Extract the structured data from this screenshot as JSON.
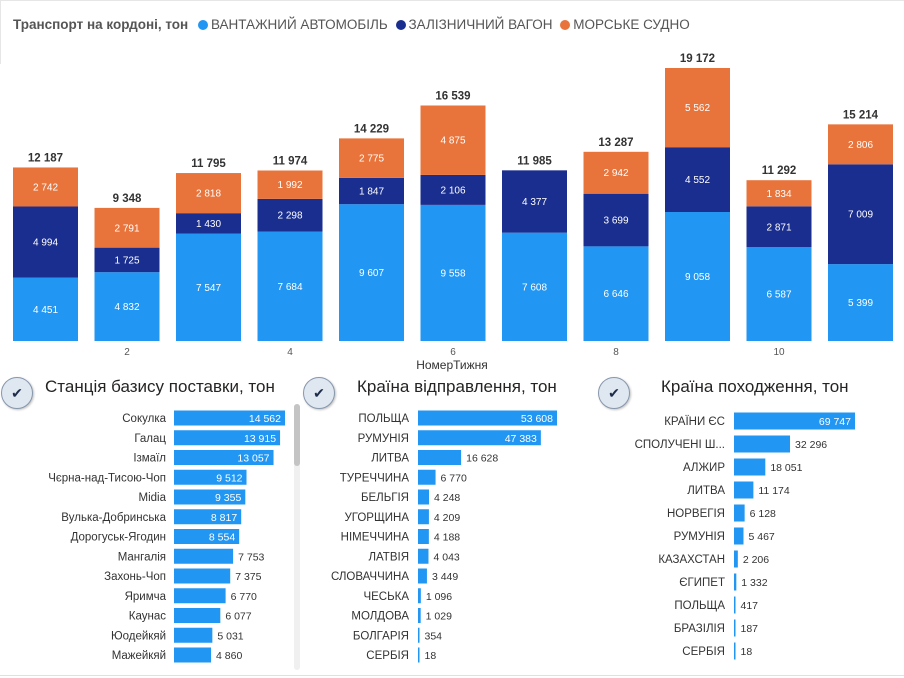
{
  "legend": {
    "title": "Транспорт на кордоні, тон",
    "items": [
      {
        "label": "ВАНТАЖНИЙ АВТОМОБІЛЬ",
        "color": "#2196F3"
      },
      {
        "label": "ЗАЛІЗНИЧНИЙ ВАГОН",
        "color": "#1A2E8F"
      },
      {
        "label": "МОРСЬКЕ СУДНО",
        "color": "#E8743B"
      }
    ]
  },
  "panels": {
    "station_title": "Станція базису поставки, тон",
    "dispatch_title": "Країна відправлення, тон",
    "origin_title": "Країна походження, тон",
    "check_glyph": "✔"
  },
  "chart_data": [
    {
      "type": "bar",
      "stacked": true,
      "xlabel": "НомерТижня",
      "categories": [
        1,
        2,
        3,
        4,
        5,
        6,
        7,
        8,
        9,
        10,
        11
      ],
      "tick_labels": [
        "",
        "2",
        "",
        "4",
        "",
        "6",
        "",
        "8",
        "",
        "10",
        ""
      ],
      "series": [
        {
          "name": "ВАНТАЖНИЙ АВТОМОБІЛЬ",
          "color": "#2196F3",
          "values": [
            4451,
            4832,
            7547,
            7684,
            9607,
            9558,
            7608,
            6646,
            9058,
            6587,
            5399
          ]
        },
        {
          "name": "ЗАЛІЗНИЧНИЙ ВАГОН",
          "color": "#1A2E8F",
          "values": [
            4994,
            1725,
            1430,
            2298,
            1847,
            2106,
            4377,
            3699,
            4552,
            2871,
            7009
          ]
        },
        {
          "name": "МОРСЬКЕ СУДНО",
          "color": "#E8743B",
          "values": [
            2742,
            2791,
            2818,
            1992,
            2775,
            4875,
            0,
            2942,
            5562,
            1834,
            2806
          ]
        }
      ],
      "value_labels": [
        [
          "4 451",
          "4 832",
          "7 547",
          "7 684",
          "9 607",
          "9 558",
          "7 608",
          "6 646",
          "9 058",
          "6 587",
          "5 399"
        ],
        [
          "4 994",
          "1 725",
          "1 430",
          "2 298",
          "1 847",
          "2 106",
          "4 377",
          "3 699",
          "4 552",
          "2 871",
          "7 009"
        ],
        [
          "2 742",
          "2 791",
          "2 818",
          "1 992",
          "2 775",
          "4 875",
          "",
          "2 942",
          "5 562",
          "1 834",
          "2 806"
        ]
      ],
      "totals": [
        12187,
        9348,
        11795,
        11974,
        14229,
        16539,
        11985,
        13287,
        19172,
        11292,
        15214
      ],
      "total_labels": [
        "12 187",
        "9 348",
        "11 795",
        "11 974",
        "14 229",
        "16 539",
        "11 985",
        "13 287",
        "19 172",
        "11 292",
        "15 214"
      ],
      "ylim": [
        0,
        19172
      ]
    },
    {
      "type": "bar",
      "orientation": "horizontal",
      "title": "Станція базису поставки, тон",
      "color": "#2196F3",
      "categories": [
        "Сокулка",
        "Галац",
        "Ізмаїл",
        "Чєрна-над-Тисою-Чоп",
        "Midia",
        "Вулька-Добринська",
        "Дорогуськ-Ягодин",
        "Мангалія",
        "Захонь-Чоп",
        "Яримча",
        "Каунас",
        "Юодейкяй",
        "Мажейкяй"
      ],
      "values": [
        14562,
        13915,
        13057,
        9512,
        9355,
        8817,
        8554,
        7753,
        7375,
        6770,
        6077,
        5031,
        4860
      ],
      "value_labels": [
        "14 562",
        "13 915",
        "13 057",
        "9 512",
        "9 355",
        "8 817",
        "8 554",
        "7 753",
        "7 375",
        "6 770",
        "6 077",
        "5 031",
        "4 860"
      ]
    },
    {
      "type": "bar",
      "orientation": "horizontal",
      "title": "Країна відправлення, тон",
      "color": "#2196F3",
      "categories": [
        "ПОЛЬЩА",
        "РУМУНІЯ",
        "ЛИТВА",
        "ТУРЕЧЧИНА",
        "БЕЛЬГІЯ",
        "УГОРЩИНА",
        "НІМЕЧЧИНА",
        "ЛАТВІЯ",
        "СЛОВАЧЧИНА",
        "ЧЕСЬКА",
        "МОЛДОВА",
        "БОЛГАРІЯ",
        "СЕРБІЯ"
      ],
      "values": [
        53608,
        47383,
        16628,
        6770,
        4248,
        4209,
        4188,
        4043,
        3449,
        1096,
        1029,
        354,
        18
      ],
      "value_labels": [
        "53 608",
        "47 383",
        "16 628",
        "6 770",
        "4 248",
        "4 209",
        "4 188",
        "4 043",
        "3 449",
        "1 096",
        "1 029",
        "354",
        "18"
      ]
    },
    {
      "type": "bar",
      "orientation": "horizontal",
      "title": "Країна походження, тон",
      "color": "#2196F3",
      "categories": [
        "КРАЇНИ ЄС",
        "СПОЛУЧЕНІ Ш...",
        "АЛЖИР",
        "ЛИТВА",
        "НОРВЕГІЯ",
        "РУМУНІЯ",
        "КАЗАХСТАН",
        "ЄГИПЕТ",
        "ПОЛЬЩА",
        "БРАЗІЛІЯ",
        "СЕРБІЯ"
      ],
      "values": [
        69747,
        32296,
        18051,
        11174,
        6128,
        5467,
        2206,
        1332,
        417,
        187,
        18
      ],
      "value_labels": [
        "69 747",
        "32 296",
        "18 051",
        "11 174",
        "6 128",
        "5 467",
        "2 206",
        "1 332",
        "417",
        "187",
        "18"
      ]
    }
  ]
}
